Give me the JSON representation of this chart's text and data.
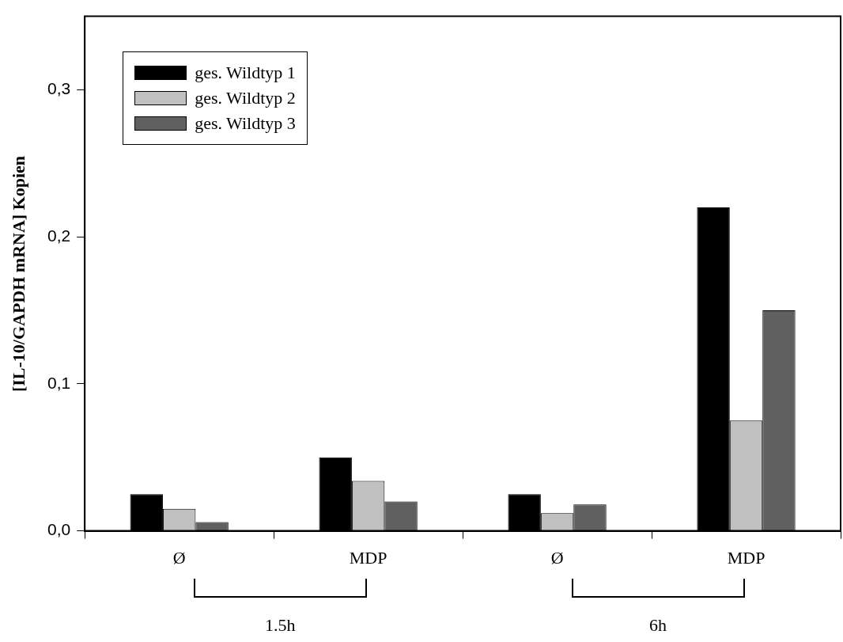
{
  "chart_data": {
    "type": "bar",
    "ylabel": "[IL-10/GAPDH mRNA] Kopien",
    "categories": [
      "Ø",
      "MDP",
      "Ø",
      "MDP"
    ],
    "series": [
      {
        "name": "ges. Wildtyp 1",
        "color": "#000000",
        "values": [
          0.025,
          0.05,
          0.025,
          0.22
        ]
      },
      {
        "name": "ges. Wildtyp 2",
        "color": "#c0c0c0",
        "values": [
          0.015,
          0.034,
          0.012,
          0.075
        ]
      },
      {
        "name": "ges. Wildtyp 3",
        "color": "#606060",
        "values": [
          0.006,
          0.02,
          0.018,
          0.15
        ]
      }
    ],
    "ylim": [
      0,
      0.35
    ],
    "yticks": [
      {
        "value": 0,
        "label": "0,0"
      },
      {
        "value": 0.1,
        "label": "0,1"
      },
      {
        "value": 0.2,
        "label": "0,2"
      },
      {
        "value": 0.3,
        "label": "0,3"
      }
    ],
    "grid": false,
    "legend": "top left",
    "annotations": [
      "1.5h",
      "6h"
    ]
  }
}
